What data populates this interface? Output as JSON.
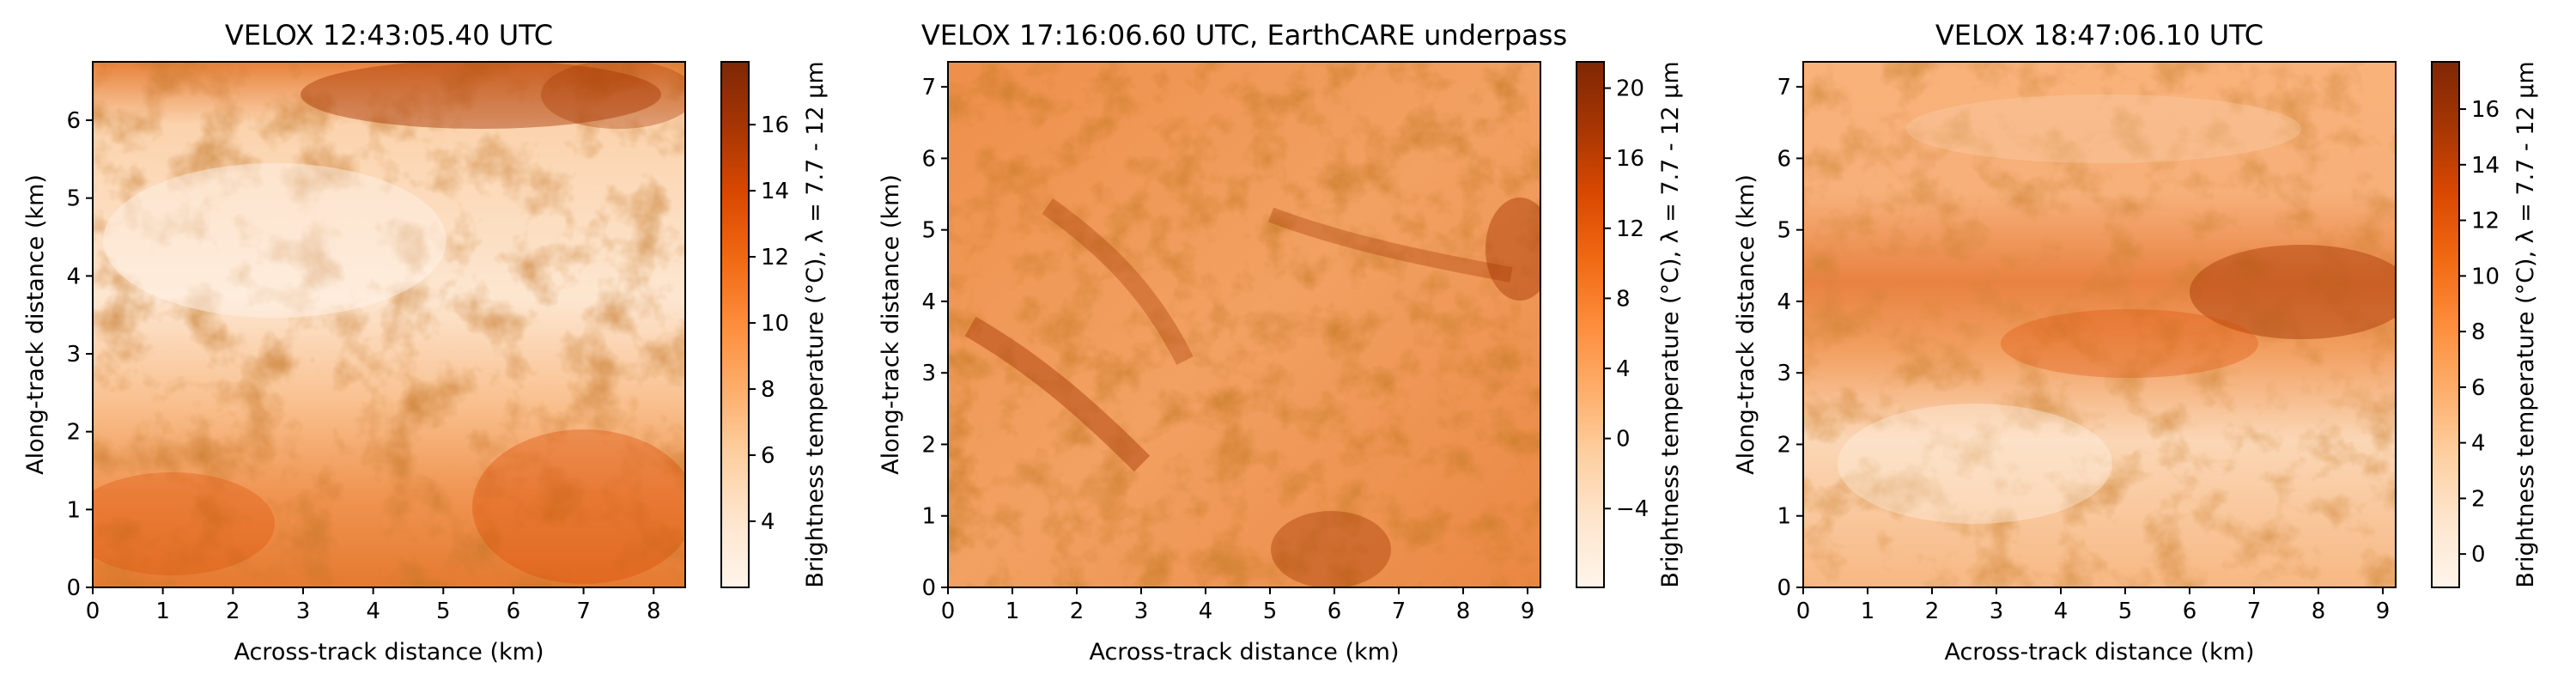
{
  "chart_data": [
    {
      "type": "heatmap",
      "title": "VELOX 12:43:05.40 UTC",
      "xlabel": "Across-track distance (km)",
      "ylabel": "Along-track distance (km)",
      "xlim": [
        0,
        8.45
      ],
      "ylim": [
        0,
        6.75
      ],
      "xticks": [
        "0",
        "1",
        "2",
        "3",
        "4",
        "5",
        "6",
        "7",
        "8"
      ],
      "yticks": [
        "0",
        "1",
        "2",
        "3",
        "4",
        "5",
        "6"
      ],
      "colorbar": {
        "label": "Brightness temperature (°C), λ = 7.7 - 12 µm",
        "range": [
          2.0,
          17.9
        ],
        "ticks": [
          "4",
          "6",
          "8",
          "10",
          "12",
          "14",
          "16"
        ]
      },
      "colormap": "Oranges"
    },
    {
      "type": "heatmap",
      "title": "VELOX 17:16:06.60 UTC, EarthCARE underpass",
      "xlabel": "Across-track distance (km)",
      "ylabel": "Along-track distance (km)",
      "xlim": [
        0,
        9.2
      ],
      "ylim": [
        0,
        7.35
      ],
      "xticks": [
        "0",
        "1",
        "2",
        "3",
        "4",
        "5",
        "6",
        "7",
        "8",
        "9"
      ],
      "yticks": [
        "0",
        "1",
        "2",
        "3",
        "4",
        "5",
        "6",
        "7"
      ],
      "colorbar": {
        "label": "Brightness temperature (°C), λ = 7.7 - 12 µm",
        "range": [
          -8.5,
          21.5
        ],
        "ticks": [
          "−4",
          "0",
          "4",
          "8",
          "12",
          "16",
          "20"
        ]
      },
      "colormap": "Oranges"
    },
    {
      "type": "heatmap",
      "title": "VELOX 18:47:06.10 UTC",
      "xlabel": "Across-track distance (km)",
      "ylabel": "Along-track distance (km)",
      "xlim": [
        0,
        9.2
      ],
      "ylim": [
        0,
        7.35
      ],
      "xticks": [
        "0",
        "1",
        "2",
        "3",
        "4",
        "5",
        "6",
        "7",
        "8",
        "9"
      ],
      "yticks": [
        "0",
        "1",
        "2",
        "3",
        "4",
        "5",
        "6",
        "7"
      ],
      "colorbar": {
        "label": "Brightness temperature (°C), λ = 7.7 - 12 µm",
        "range": [
          -1.2,
          17.7
        ],
        "ticks": [
          "0",
          "2",
          "4",
          "6",
          "8",
          "10",
          "12",
          "14",
          "16"
        ]
      },
      "colormap": "Oranges"
    }
  ],
  "colors": {
    "cmap_low": "#fff5eb",
    "cmap_mid": "#fd8d3c",
    "cmap_high": "#7f2704"
  }
}
